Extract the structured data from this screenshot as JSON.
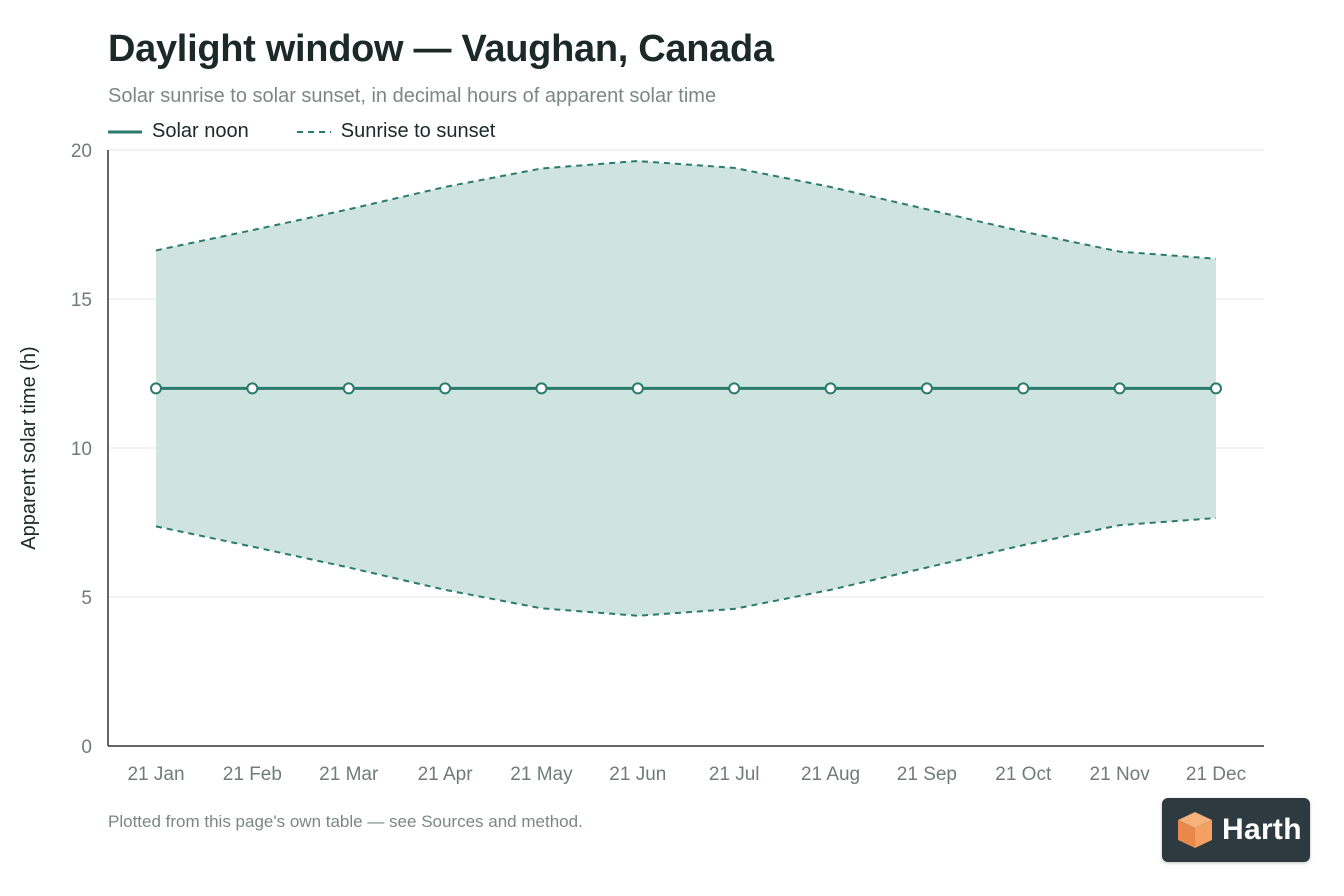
{
  "header": {
    "title": "Daylight window — Vaughan, Canada",
    "subtitle": "Solar sunrise to solar sunset, in decimal hours of apparent solar time"
  },
  "legend": {
    "noon_label": "Solar noon",
    "window_label": "Sunrise to sunset"
  },
  "footnote": "Plotted from this page's own table — see Sources and method.",
  "logo": {
    "text": "Harth",
    "icon": "harth-cube-icon"
  },
  "colors": {
    "accent": "#2a7a6e",
    "band_fill": "#cfe4e0",
    "axis": "#333333",
    "grid": "#e6e9e8",
    "tick_text": "#6f7c78"
  },
  "chart_data": {
    "type": "area",
    "title": "Daylight window — Vaughan, Canada",
    "subtitle": "Solar sunrise to solar sunset, in decimal hours of apparent solar time",
    "xlabel": "",
    "ylabel": "Apparent solar time (h)",
    "ylim": [
      0,
      20
    ],
    "yticks": [
      0,
      5,
      10,
      15,
      20
    ],
    "grid": true,
    "legend_position": "top-left",
    "categories": [
      "21 Jan",
      "21 Feb",
      "21 Mar",
      "21 Apr",
      "21 May",
      "21 Jun",
      "21 Jul",
      "21 Aug",
      "21 Sep",
      "21 Oct",
      "21 Nov",
      "21 Dec"
    ],
    "series": [
      {
        "name": "Solar noon",
        "style": "solid-markers",
        "values": [
          12,
          12,
          12,
          12,
          12,
          12,
          12,
          12,
          12,
          12,
          12,
          12
        ]
      },
      {
        "name": "Sunrise to sunset",
        "style": "dashed-band",
        "sunrise": [
          7.37,
          6.69,
          5.99,
          5.24,
          4.62,
          4.37,
          4.6,
          5.24,
          5.99,
          6.74,
          7.41,
          7.65
        ],
        "sunset": [
          16.63,
          17.31,
          18.01,
          18.76,
          19.38,
          19.63,
          19.4,
          18.76,
          18.01,
          17.26,
          16.59,
          16.35
        ]
      }
    ]
  }
}
